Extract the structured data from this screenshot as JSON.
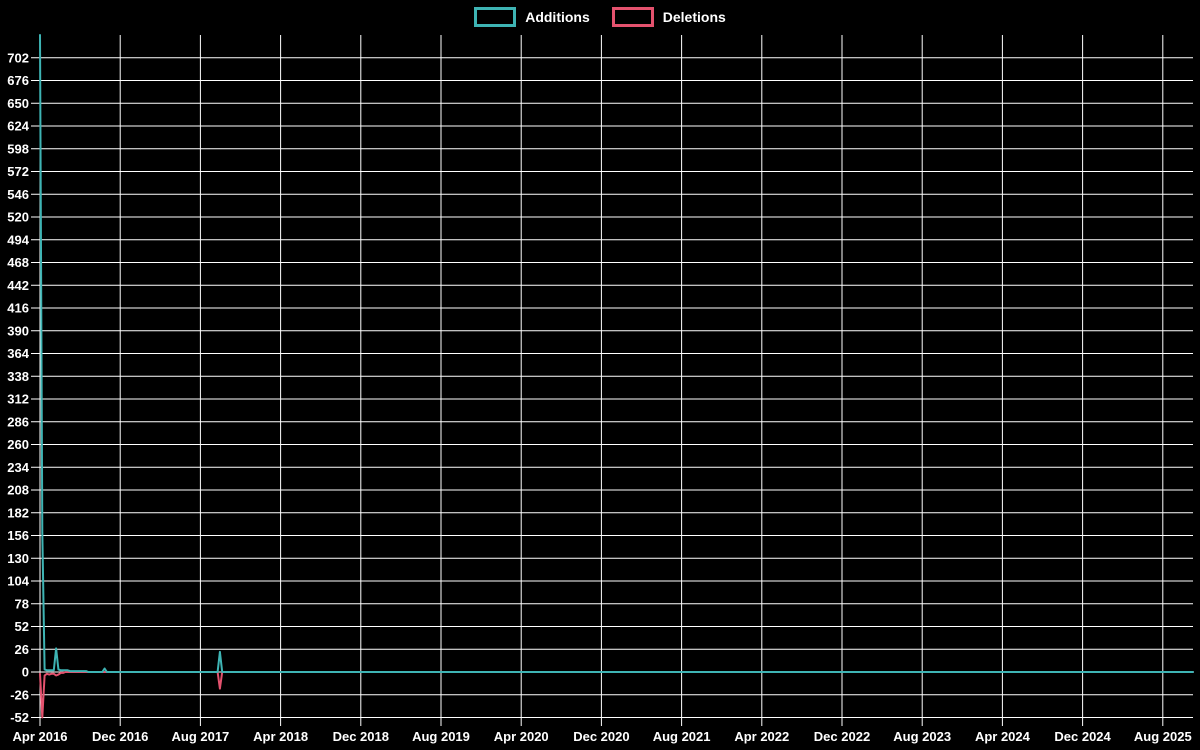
{
  "chart_data": {
    "type": "line",
    "title": "",
    "legend_position": "top",
    "grid": true,
    "background_color": "#000000",
    "gridline_color": "#ffffff",
    "text_color": "#ffffff",
    "x_axis": {
      "tick_labels": [
        "Apr 2016",
        "Dec 2016",
        "Aug 2017",
        "Apr 2018",
        "Dec 2018",
        "Aug 2019",
        "Apr 2020",
        "Dec 2020",
        "Aug 2021",
        "Apr 2022",
        "Dec 2022",
        "Aug 2023",
        "Apr 2024",
        "Dec 2024",
        "Aug 2025"
      ],
      "tick_interval_months": 8
    },
    "y_axis": {
      "min": -52,
      "max": 728,
      "tick_step": 26,
      "tick_labels": [
        702,
        676,
        650,
        624,
        598,
        572,
        546,
        520,
        494,
        468,
        442,
        416,
        390,
        364,
        338,
        312,
        286,
        260,
        234,
        208,
        182,
        156,
        130,
        104,
        78,
        52,
        26,
        0,
        -26,
        -52
      ]
    },
    "x_total_weeks": 501,
    "series": [
      {
        "name": "Additions",
        "color": "#3eb4b4",
        "default_value": 0,
        "weekly_values_nonzero": {
          "0": 728,
          "1": 160,
          "2": 3,
          "3": 2,
          "4": 2,
          "5": 2,
          "6": 2,
          "7": 27,
          "8": 3,
          "9": 2,
          "10": 2,
          "11": 2,
          "12": 2,
          "13": 1,
          "14": 1,
          "15": 1,
          "16": 1,
          "17": 1,
          "18": 1,
          "19": 1,
          "20": 1,
          "28": 4,
          "78": 23
        }
      },
      {
        "name": "Deletions",
        "color": "#e4526e",
        "default_value": 0,
        "weekly_values_nonzero": {
          "0": -2,
          "1": -52,
          "2": -4,
          "3": -2,
          "4": -3,
          "5": -2,
          "6": -2,
          "7": -4,
          "8": -3,
          "9": -1,
          "10": -1,
          "78": -19
        }
      }
    ]
  }
}
